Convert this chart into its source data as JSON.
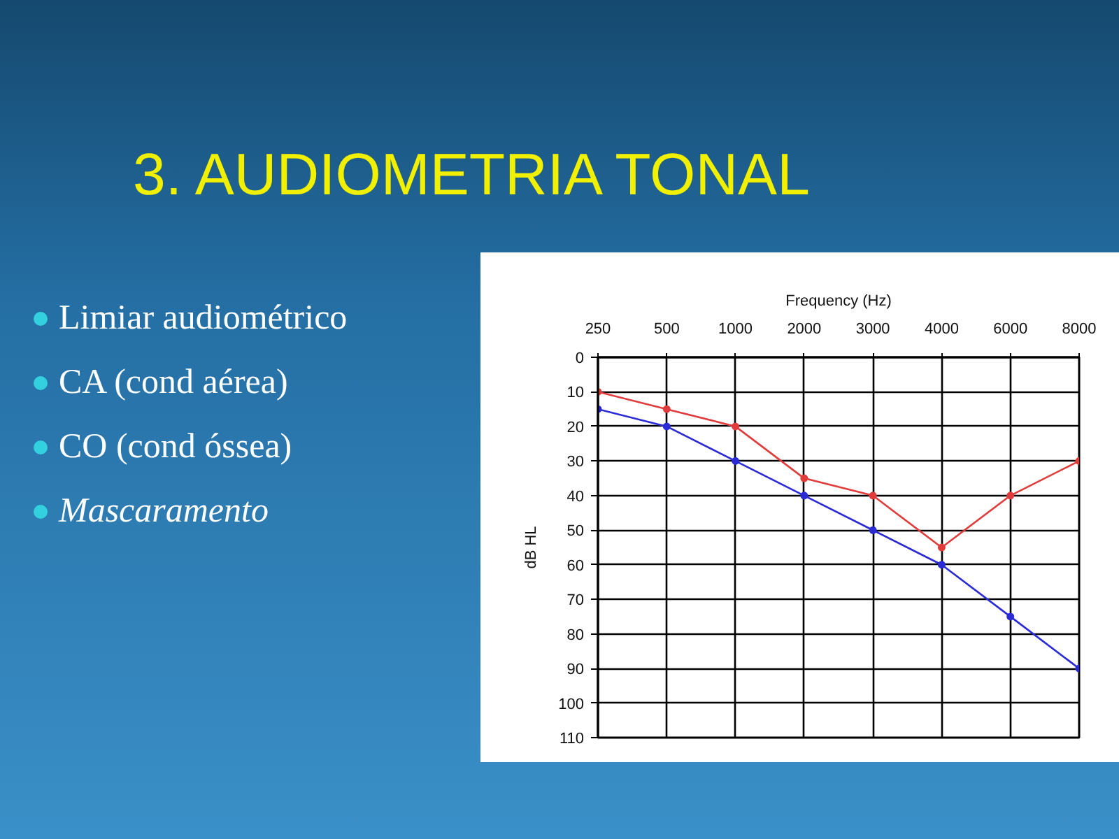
{
  "chart_data": {
    "type": "line",
    "title": "3. AUDIOMETRIA TONAL",
    "xlabel": "Frequency (Hz)",
    "ylabel": "dB HL",
    "categories": [
      "250",
      "500",
      "1000",
      "2000",
      "3000",
      "4000",
      "6000",
      "8000"
    ],
    "series": [
      {
        "color": "#e03c3c",
        "values": [
          10,
          15,
          20,
          35,
          40,
          55,
          40,
          30
        ]
      },
      {
        "color": "#2b2bd6",
        "values": [
          15,
          20,
          30,
          40,
          50,
          60,
          75,
          90
        ]
      }
    ],
    "ylim": [
      110,
      0
    ],
    "yticks": [
      0,
      10,
      20,
      30,
      40,
      50,
      60,
      70,
      80,
      90,
      100,
      110
    ],
    "grid": true,
    "marker": "circle",
    "line_style": "solid",
    "annotations": [
      "Limiar audiométrico",
      "CA (cond aérea)",
      "CO (cond óssea)",
      "Mascaramento"
    ]
  }
}
